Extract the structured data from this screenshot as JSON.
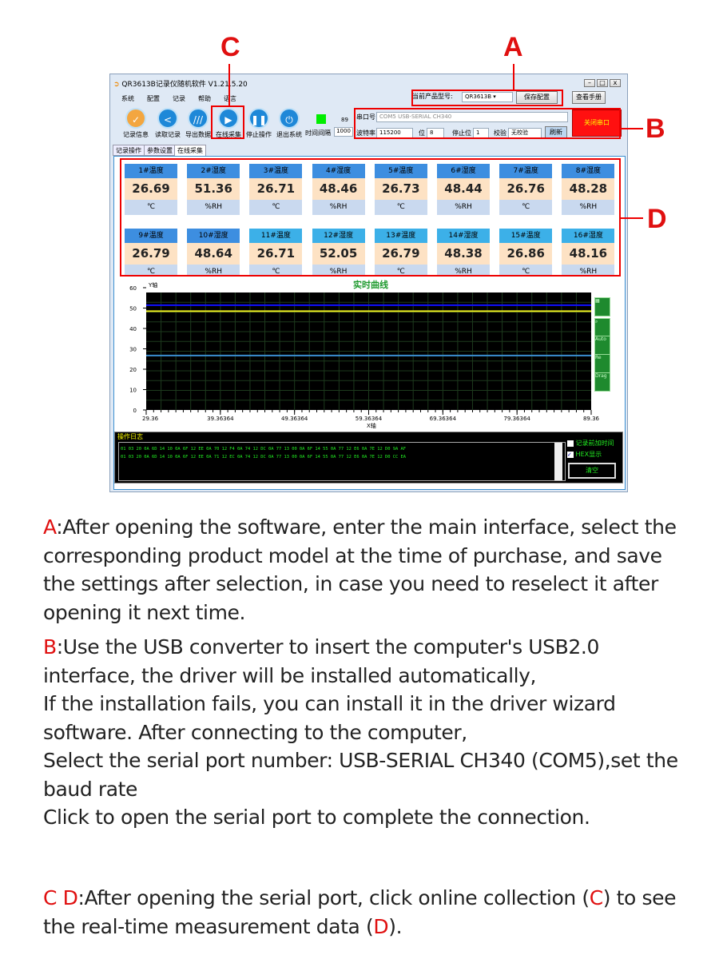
{
  "annotations": {
    "a": "A",
    "b": "B",
    "c": "C",
    "d": "D"
  },
  "window": {
    "title": "QR3613B记录仪随机软件  V1.21.5.20",
    "menu": [
      "系统",
      "配置",
      "记录",
      "帮助",
      "语言"
    ],
    "toolbar": [
      "记录信息",
      "读取记录",
      "导出数据",
      "在线采集",
      "停止操作",
      "退出系统"
    ],
    "interval_label": "时间间隔",
    "interval_value": "1000",
    "interval_count": "89",
    "status_color": "#00ee00",
    "model_label": "当前产品型号:",
    "model_value": "QR3613B",
    "save_config": "保存配置",
    "manual": "查看手册",
    "port_label": "串口号",
    "port_value": "COM5 USB-SERIAL CH340",
    "baud_label": "波特率",
    "baud_value": "115200",
    "bits_label": "位",
    "bits_value": "8",
    "stop_label": "停止位",
    "stop_value": "1",
    "parity_label": "校验",
    "parity_value": "无校验",
    "refresh": "刷新",
    "close_port": "关闭串口",
    "tabs": [
      "记录操作",
      "参数设置",
      "在线采集"
    ]
  },
  "channels": [
    {
      "name": "1#温度",
      "value": "26.69",
      "unit": "℃"
    },
    {
      "name": "2#湿度",
      "value": "51.36",
      "unit": "%RH"
    },
    {
      "name": "3#温度",
      "value": "26.71",
      "unit": "℃"
    },
    {
      "name": "4#湿度",
      "value": "48.46",
      "unit": "%RH"
    },
    {
      "name": "5#温度",
      "value": "26.73",
      "unit": "℃"
    },
    {
      "name": "6#湿度",
      "value": "48.44",
      "unit": "%RH"
    },
    {
      "name": "7#温度",
      "value": "26.76",
      "unit": "℃"
    },
    {
      "name": "8#湿度",
      "value": "48.28",
      "unit": "%RH"
    },
    {
      "name": "9#温度",
      "value": "26.79",
      "unit": "℃"
    },
    {
      "name": "10#湿度",
      "value": "48.64",
      "unit": "%RH"
    },
    {
      "name": "11#温度",
      "value": "26.71",
      "unit": "℃"
    },
    {
      "name": "12#湿度",
      "value": "52.05",
      "unit": "%RH"
    },
    {
      "name": "13#温度",
      "value": "26.79",
      "unit": "℃"
    },
    {
      "name": "14#湿度",
      "value": "48.38",
      "unit": "%RH"
    },
    {
      "name": "15#温度",
      "value": "26.86",
      "unit": "℃"
    },
    {
      "name": "16#湿度",
      "value": "48.16",
      "unit": "%RH"
    }
  ],
  "chart_data": {
    "type": "line",
    "title": "实时曲线",
    "xlabel": "X轴",
    "ylabel": "Y轴",
    "ylim": [
      0,
      60
    ],
    "xlim": [
      29.36,
      89.36
    ],
    "yticks": [
      "0",
      "10",
      "20",
      "30",
      "40",
      "50",
      "60"
    ],
    "xticks": [
      "29.36",
      "39.36364",
      "49.36364",
      "59.36364",
      "69.36364",
      "79.36364",
      "89.36"
    ],
    "grid": true,
    "series": [
      {
        "color": "#1010ff",
        "values": [
          51.4,
          51.4
        ]
      },
      {
        "color": "#f0f020",
        "values": [
          48.5,
          48.5
        ]
      },
      {
        "color": "#3a8ed0",
        "values": [
          26.7,
          26.7
        ]
      }
    ],
    "side_buttons": [
      "Auto",
      "Re",
      "Drag"
    ]
  },
  "log": {
    "title": "操作日志",
    "lines": [
      "01 03 20 0A 6D 14 10 0A 6F 12 EE 0A 70 12 F4 0A 74 12 DC 0A 77 13 00 0A 6F 14 55 0A 77 12 E6 0A 7E 12 D0 9A AF",
      "01 03 20 0A 6D 14 10 0A 6F 12 EE 0A 71 12 EC 0A 74 12 DC 0A 77 13 00 0A 6F 14 55 0A 77 12 E6 0A 7E 12 D0 CC EA"
    ],
    "opt_time": "记录前加时间",
    "opt_hex": "HEX显示",
    "clear": "清空"
  },
  "text": {
    "a_letter": "A",
    "a": ":After opening the software, enter the main interface, select the corresponding product model at the time of purchase, and save the settings after selection, in case you need to reselect it after opening it next time.",
    "b_letter": "B",
    "b1": ":Use the USB converter to insert the computer's USB2.0 interface, the driver will be installed automatically,",
    "b2": "If the installation fails, you can install it in the driver wizard software. After connecting to the computer,",
    "b3": "Select the serial port number: USB-SERIAL CH340 (COM5),set the baud rate",
    "b4": "Click to open the serial port to complete the connection.",
    "cd_c": "C",
    "cd_d": "D",
    "cd1": ":After opening the serial port, click online collection (",
    "cd_c2": "C",
    "cd2": ") to see the real-time measurement data (",
    "cd_d2": "D",
    "cd3": ")."
  }
}
